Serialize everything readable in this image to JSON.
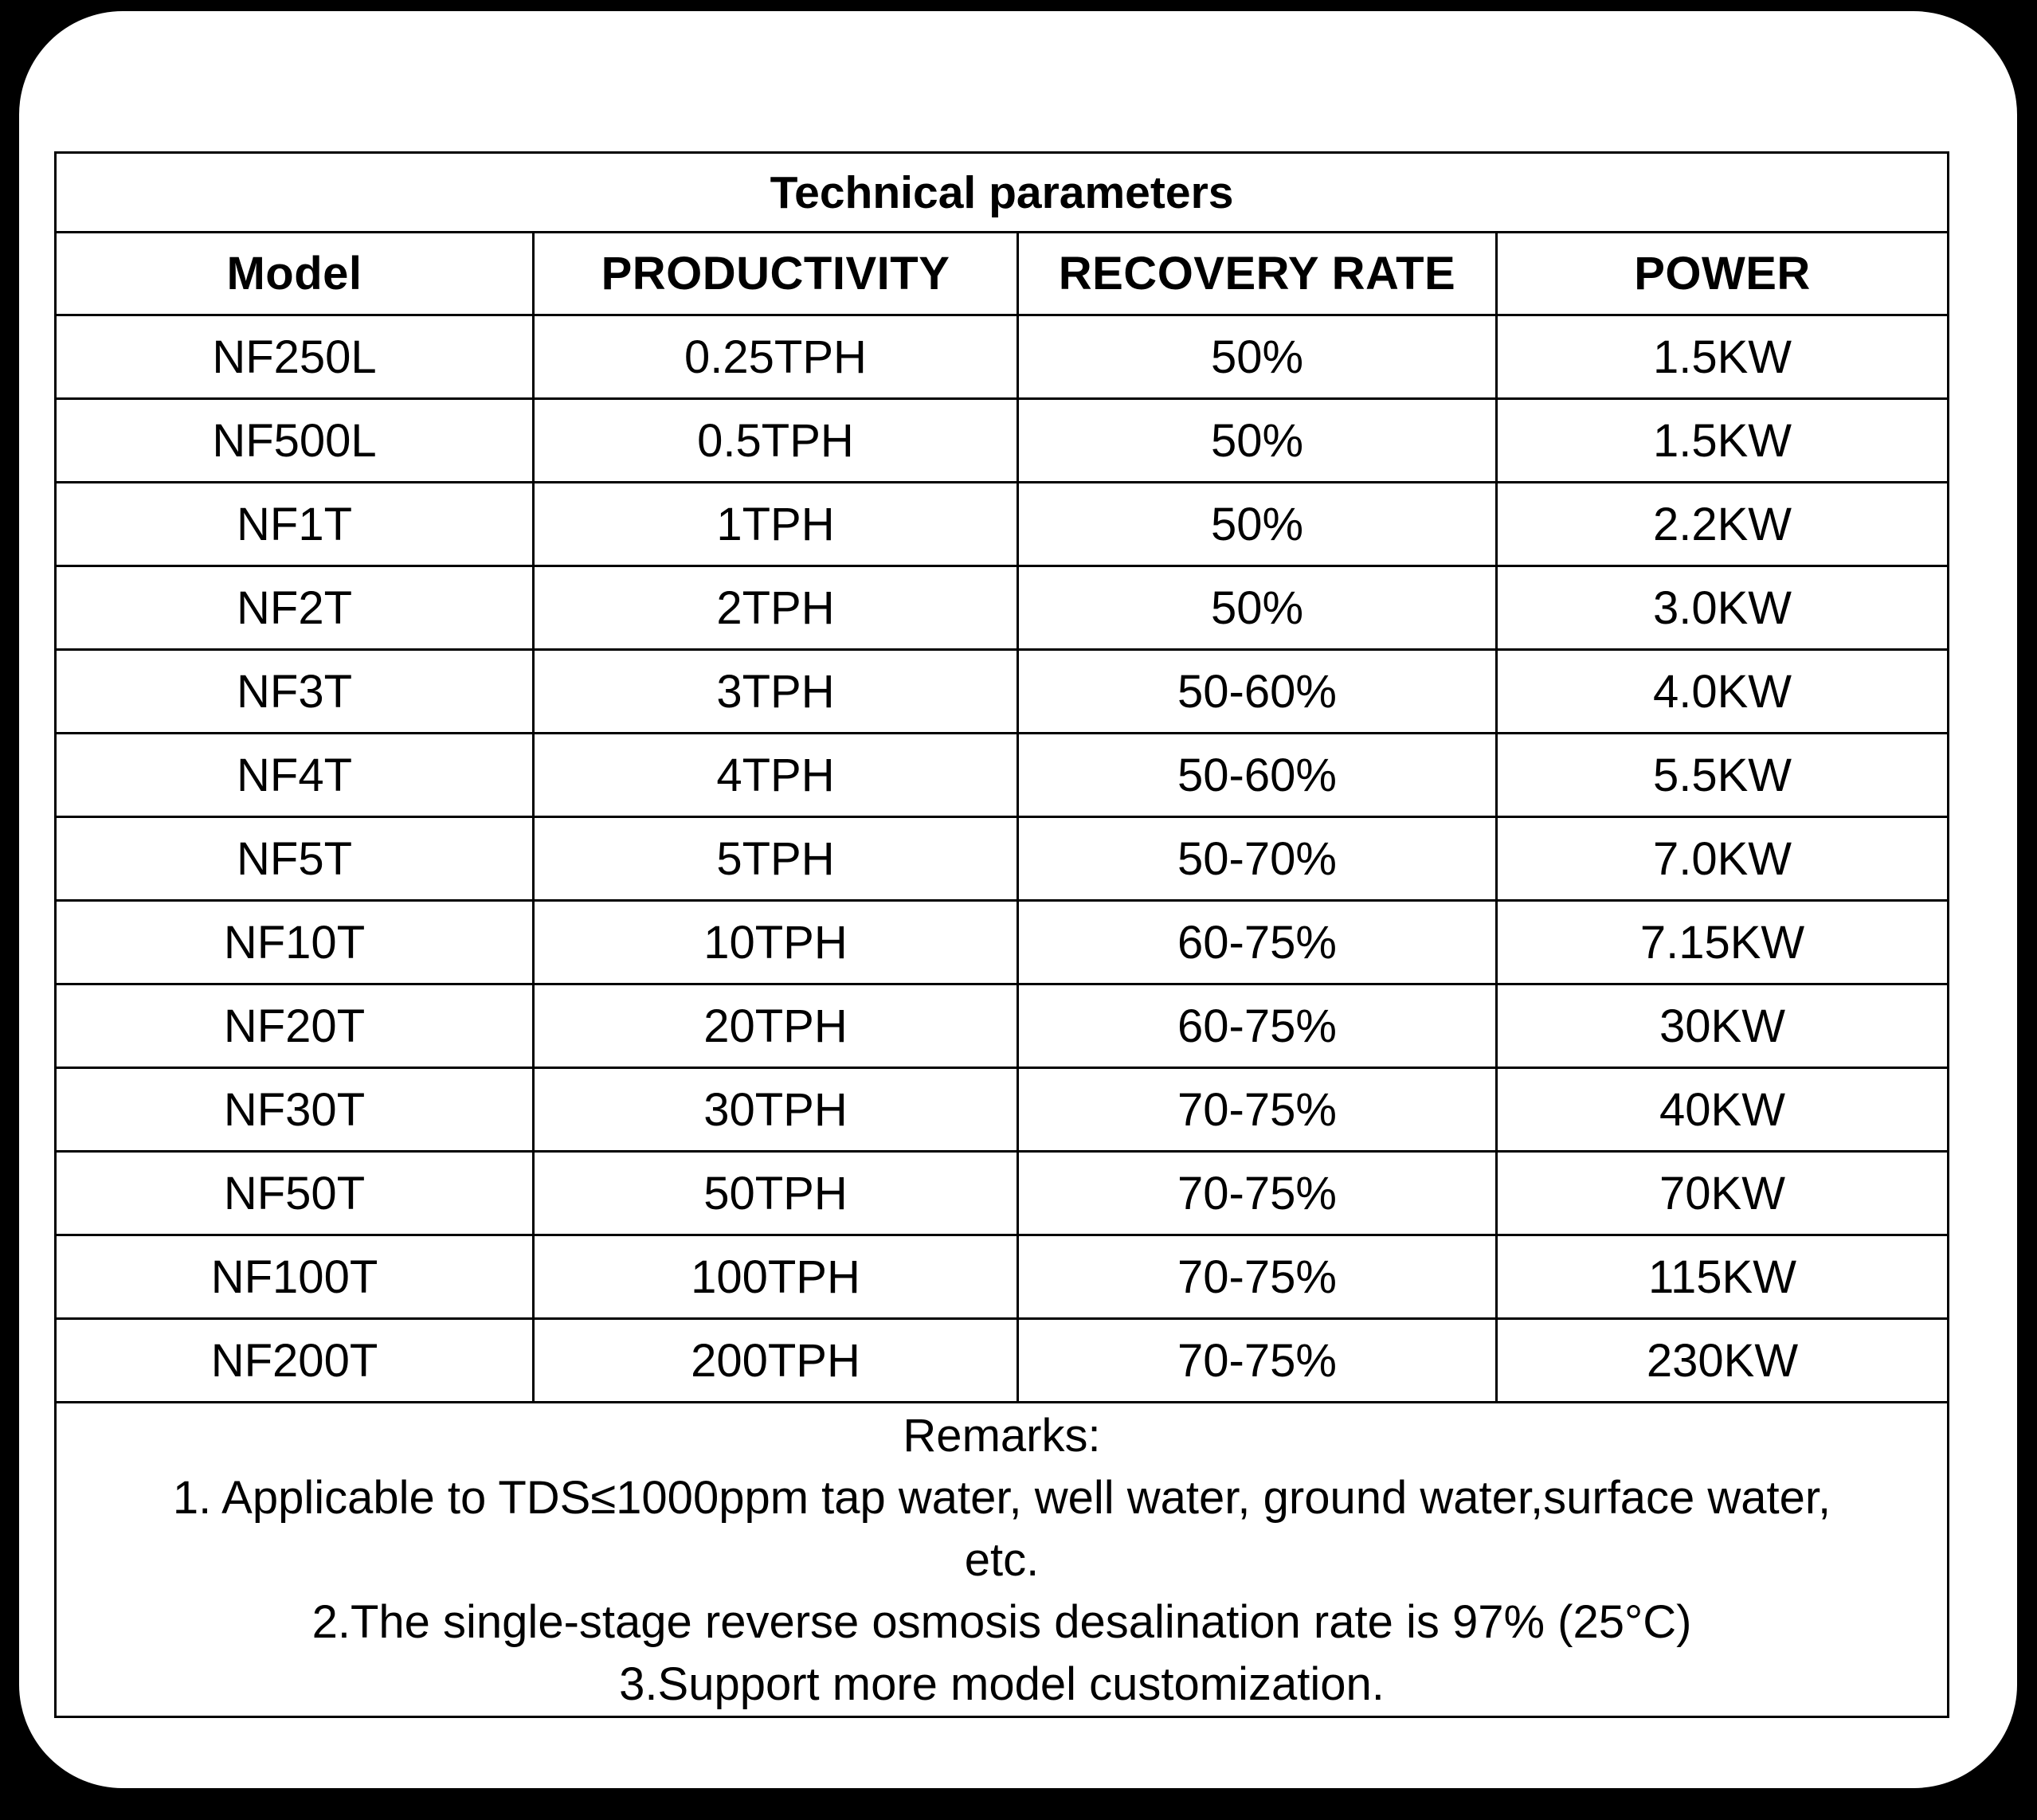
{
  "page": {
    "background_color": "#000000",
    "card_color": "#ffffff",
    "text_color": "#000000"
  },
  "table": {
    "title": "Technical parameters",
    "columns": [
      "Model",
      "PRODUCTIVITY",
      "RECOVERY RATE",
      "POWER"
    ],
    "rows": [
      [
        "NF250L",
        "0.25TPH",
        "50%",
        "1.5KW"
      ],
      [
        "NF500L",
        "0.5TPH",
        "50%",
        "1.5KW"
      ],
      [
        "NF1T",
        "1TPH",
        "50%",
        "2.2KW"
      ],
      [
        "NF2T",
        "2TPH",
        "50%",
        "3.0KW"
      ],
      [
        "NF3T",
        "3TPH",
        "50-60%",
        "4.0KW"
      ],
      [
        "NF4T",
        "4TPH",
        "50-60%",
        "5.5KW"
      ],
      [
        "NF5T",
        "5TPH",
        "50-70%",
        "7.0KW"
      ],
      [
        "NF10T",
        "10TPH",
        "60-75%",
        "7.15KW"
      ],
      [
        "NF20T",
        "20TPH",
        "60-75%",
        "30KW"
      ],
      [
        "NF30T",
        "30TPH",
        "70-75%",
        "40KW"
      ],
      [
        "NF50T",
        "50TPH",
        "70-75%",
        "70KW"
      ],
      [
        "NF100T",
        "100TPH",
        "70-75%",
        "115KW"
      ],
      [
        "NF200T",
        "200TPH",
        "70-75%",
        "230KW"
      ]
    ],
    "remarks_lines": [
      "Remarks:",
      "1. Applicable to TDS≤1000ppm tap water, well water, ground water,surface water,",
      "etc.",
      "2.The single-stage reverse osmosis desalination rate is 97% (25°C)",
      "3.Support more model customization."
    ]
  }
}
